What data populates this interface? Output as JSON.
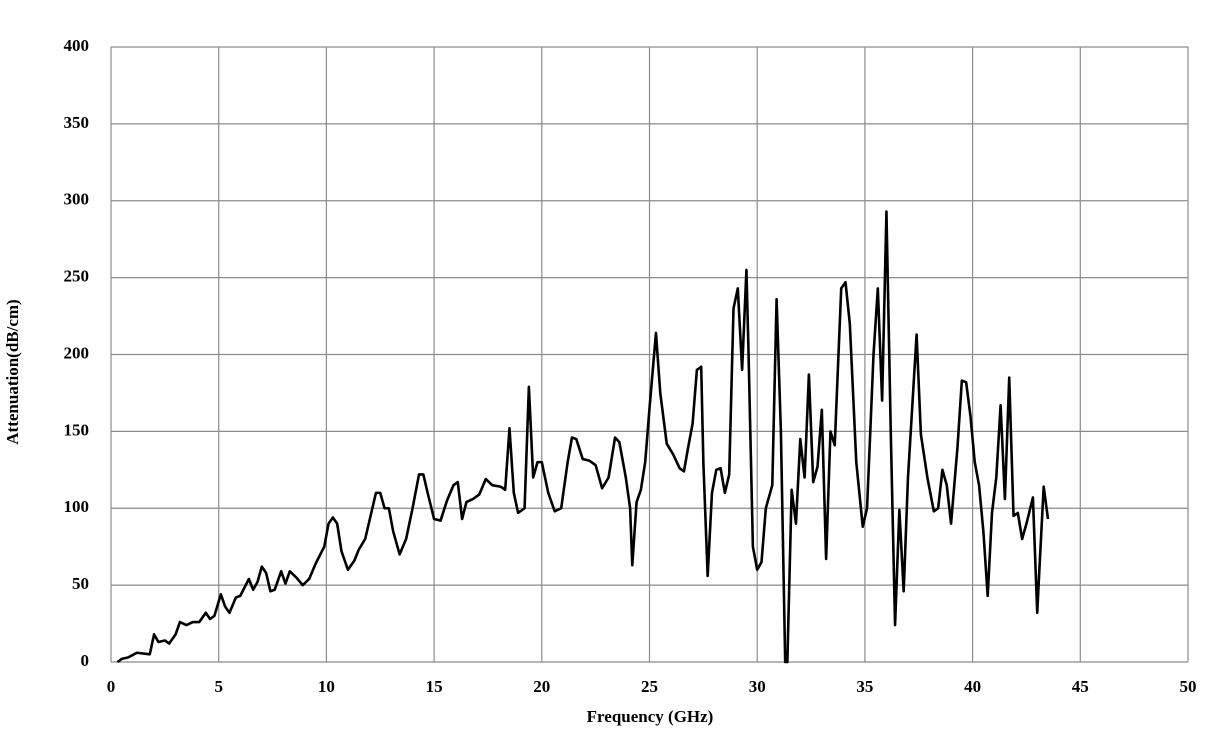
{
  "chart_data": {
    "type": "line",
    "x_label": "Frequency (GHz)",
    "y_label": "Attenuation(dB/cm)",
    "xlim": [
      0,
      50
    ],
    "xticks": [
      0,
      5,
      10,
      15,
      20,
      25,
      30,
      35,
      40,
      45,
      50
    ],
    "ylim": [
      0,
      400
    ],
    "yticks": [
      0,
      50,
      100,
      150,
      200,
      250,
      300,
      350,
      400
    ],
    "grid": true,
    "x": [
      0.3,
      0.5,
      0.8,
      1.2,
      1.8,
      2.0,
      2.2,
      2.5,
      2.7,
      3.0,
      3.2,
      3.5,
      3.8,
      4.1,
      4.4,
      4.6,
      4.8,
      5.1,
      5.3,
      5.5,
      5.8,
      6.0,
      6.4,
      6.6,
      6.8,
      7.0,
      7.2,
      7.4,
      7.6,
      7.9,
      8.1,
      8.3,
      8.6,
      8.9,
      9.2,
      9.5,
      9.9,
      10.1,
      10.3,
      10.5,
      10.7,
      11.0,
      11.3,
      11.5,
      11.8,
      12.0,
      12.3,
      12.5,
      12.7,
      12.9,
      13.1,
      13.4,
      13.7,
      14.0,
      14.3,
      14.5,
      14.7,
      15.0,
      15.3,
      15.6,
      15.9,
      16.1,
      16.3,
      16.5,
      16.8,
      17.1,
      17.4,
      17.7,
      18.1,
      18.3,
      18.5,
      18.7,
      18.9,
      19.2,
      19.4,
      19.6,
      19.8,
      20.0,
      20.3,
      20.6,
      20.9,
      21.2,
      21.4,
      21.6,
      21.9,
      22.2,
      22.5,
      22.8,
      23.1,
      23.4,
      23.6,
      23.9,
      24.1,
      24.2,
      24.4,
      24.6,
      24.8,
      25.0,
      25.3,
      25.5,
      25.8,
      26.1,
      26.4,
      26.6,
      26.8,
      27.0,
      27.2,
      27.4,
      27.5,
      27.7,
      27.9,
      28.1,
      28.3,
      28.5,
      28.7,
      28.9,
      29.1,
      29.3,
      29.5,
      29.6,
      29.8,
      30.0,
      30.2,
      30.4,
      30.7,
      30.9,
      31.1,
      31.3,
      31.4,
      31.6,
      31.8,
      32.0,
      32.2,
      32.4,
      32.6,
      32.8,
      33.0,
      33.2,
      33.4,
      33.6,
      33.9,
      34.1,
      34.3,
      34.6,
      34.9,
      35.1,
      35.4,
      35.6,
      35.8,
      36.0,
      36.2,
      36.4,
      36.6,
      36.8,
      37.0,
      37.4,
      37.6,
      37.9,
      38.2,
      38.4,
      38.6,
      38.8,
      39.0,
      39.3,
      39.5,
      39.7,
      39.9,
      40.1,
      40.3,
      40.5,
      40.7,
      40.9,
      41.1,
      41.3,
      41.5,
      41.7,
      41.9,
      42.1,
      42.3,
      42.5,
      42.8,
      43.0,
      43.1,
      43.3,
      43.5
    ],
    "series": [
      {
        "color": "#000000",
        "values": [
          0,
          2,
          3,
          6,
          5,
          18,
          13,
          14,
          12,
          18,
          26,
          24,
          26,
          26,
          32,
          28,
          30,
          44,
          36,
          32,
          42,
          43,
          54,
          47,
          52,
          62,
          58,
          46,
          47,
          59,
          51,
          59,
          55,
          50,
          54,
          64,
          75,
          90,
          94,
          90,
          72,
          60,
          66,
          73,
          80,
          92,
          110,
          110,
          100,
          100,
          85,
          70,
          80,
          100,
          122,
          122,
          110,
          93,
          92,
          105,
          115,
          117,
          93,
          104,
          106,
          109,
          119,
          115,
          114,
          112,
          152,
          110,
          97,
          100,
          179,
          120,
          130,
          130,
          110,
          98,
          100,
          130,
          146,
          145,
          132,
          131,
          128,
          113,
          120,
          146,
          143,
          120,
          100,
          63,
          104,
          112,
          130,
          165,
          214,
          175,
          142,
          135,
          126,
          124,
          140,
          155,
          190,
          192,
          130,
          56,
          110,
          125,
          126,
          110,
          122,
          230,
          243,
          190,
          255,
          200,
          75,
          60,
          65,
          100,
          115,
          236,
          150,
          0,
          0,
          112,
          90,
          145,
          120,
          187,
          117,
          127,
          164,
          67,
          150,
          141,
          243,
          247,
          220,
          130,
          88,
          100,
          200,
          243,
          170,
          293,
          150,
          24,
          99,
          46,
          120,
          213,
          148,
          120,
          98,
          100,
          125,
          115,
          90,
          140,
          183,
          182,
          160,
          130,
          115,
          85,
          43,
          97,
          120,
          167,
          106,
          185,
          95,
          97,
          80,
          90,
          107,
          32,
          60,
          114,
          93
        ]
      }
    ]
  }
}
